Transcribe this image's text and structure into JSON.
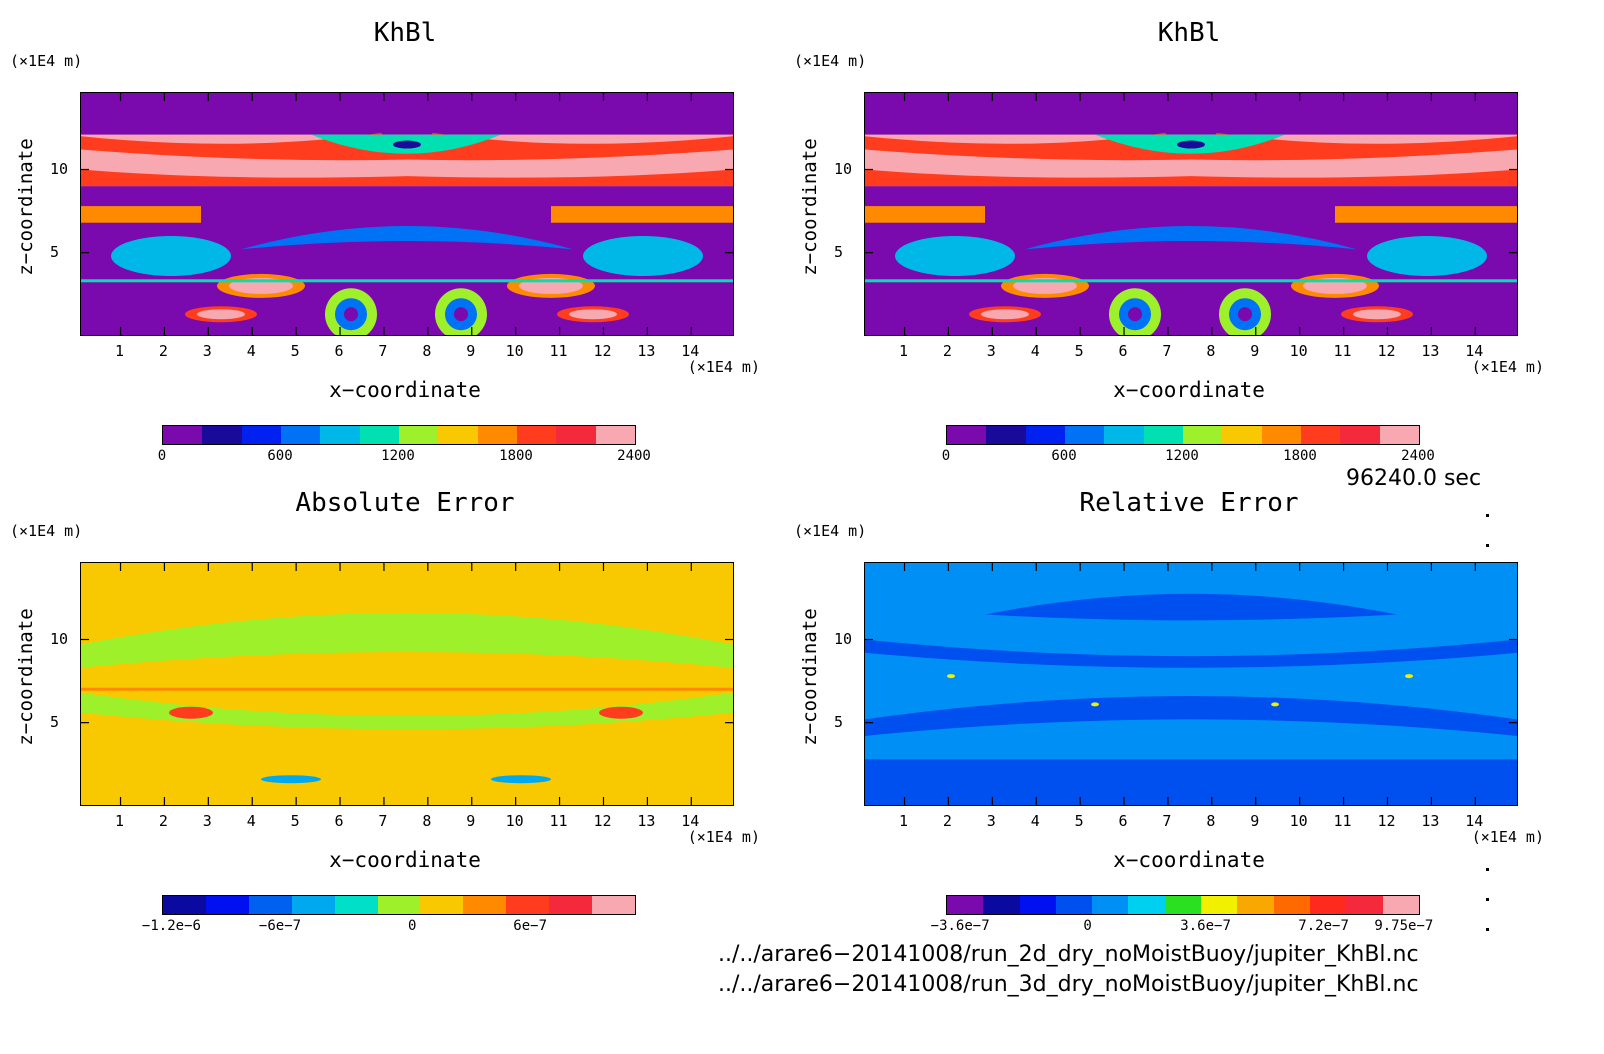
{
  "chart_data": [
    {
      "type": "heatmap",
      "title": "KhBl",
      "xlabel": "x−coordinate",
      "ylabel": "z−coordinate",
      "x_unit": "(×1E4 m)",
      "y_unit": "(×1E4 m)",
      "x_ticks": [
        "1",
        "2",
        "3",
        "4",
        "5",
        "6",
        "7",
        "8",
        "9",
        "10",
        "11",
        "12",
        "13",
        "14"
      ],
      "y_ticks": [
        "5",
        "10"
      ],
      "colorbar_labels": [
        "0",
        "600",
        "1200",
        "1800",
        "2400"
      ],
      "colorbar_colors": [
        "#7a0aad",
        "#1a0a9a",
        "#0021f0",
        "#0072f5",
        "#00b8e8",
        "#00e0b0",
        "#9ef02a",
        "#f8c800",
        "#ff8a00",
        "#ff3c1e",
        "#f42a3c",
        "#f7a8b0"
      ]
    },
    {
      "type": "heatmap",
      "title": "KhBl",
      "xlabel": "x−coordinate",
      "ylabel": "z−coordinate",
      "x_unit": "(×1E4 m)",
      "y_unit": "(×1E4 m)",
      "x_ticks": [
        "1",
        "2",
        "3",
        "4",
        "5",
        "6",
        "7",
        "8",
        "9",
        "10",
        "11",
        "12",
        "13",
        "14"
      ],
      "y_ticks": [
        "5",
        "10"
      ],
      "colorbar_labels": [
        "0",
        "600",
        "1200",
        "1800",
        "2400"
      ],
      "colorbar_colors": [
        "#7a0aad",
        "#1a0a9a",
        "#0021f0",
        "#0072f5",
        "#00b8e8",
        "#00e0b0",
        "#9ef02a",
        "#f8c800",
        "#ff8a00",
        "#ff3c1e",
        "#f42a3c",
        "#f7a8b0"
      ]
    },
    {
      "type": "heatmap",
      "title": "Absolute Error",
      "xlabel": "x−coordinate",
      "ylabel": "z−coordinate",
      "x_unit": "(×1E4 m)",
      "y_unit": "(×1E4 m)",
      "x_ticks": [
        "1",
        "2",
        "3",
        "4",
        "5",
        "6",
        "7",
        "8",
        "9",
        "10",
        "11",
        "12",
        "13",
        "14"
      ],
      "y_ticks": [
        "5",
        "10"
      ],
      "colorbar_labels": [
        "−1.2e−6",
        "−6e−7",
        "0",
        "6e−7"
      ],
      "colorbar_colors": [
        "#0a0aa0",
        "#0010f0",
        "#0060f0",
        "#00a8f0",
        "#00e0c8",
        "#9ef02a",
        "#f8c800",
        "#ff8a00",
        "#ff3c1e",
        "#f42a3c",
        "#f7a8b0"
      ]
    },
    {
      "type": "heatmap",
      "title": "Relative Error",
      "xlabel": "x−coordinate",
      "ylabel": "z−coordinate",
      "x_unit": "(×1E4 m)",
      "y_unit": "(×1E4 m)",
      "x_ticks": [
        "1",
        "2",
        "3",
        "4",
        "5",
        "6",
        "7",
        "8",
        "9",
        "10",
        "11",
        "12",
        "13",
        "14"
      ],
      "y_ticks": [
        "5",
        "10"
      ],
      "colorbar_labels": [
        "−3.6e−7",
        "0",
        "3.6e−7",
        "7.2e−7",
        "9.75e−7"
      ],
      "colorbar_colors": [
        "#7a0aad",
        "#0a0aa0",
        "#0010f0",
        "#0050f0",
        "#0090f5",
        "#00d0f0",
        "#2ae020",
        "#f0f000",
        "#f8a800",
        "#ff6a00",
        "#ff2a1e",
        "#f42a3c",
        "#f7a8b0"
      ]
    }
  ],
  "time_label": "96240.0 sec",
  "files": [
    "../../arare6−20141008/run_2d_dry_noMoistBuoy/jupiter_KhBl.nc",
    "../../arare6−20141008/run_3d_dry_noMoistBuoy/jupiter_KhBl.nc"
  ]
}
